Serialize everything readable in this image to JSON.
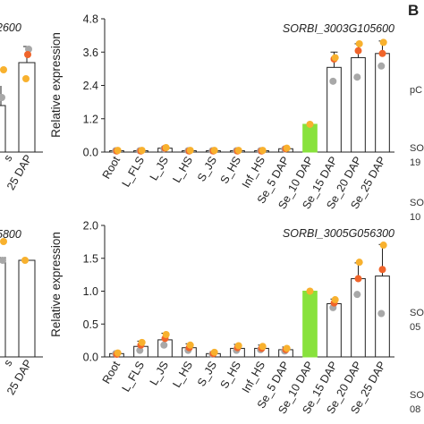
{
  "panel_letter": "B",
  "left_fragments": {
    "top_title": "2600",
    "top_labels": [
      "s",
      "25 DAP"
    ],
    "bottom_title": "5800",
    "bottom_labels": [
      "s",
      "25 DAP"
    ]
  },
  "right_fragments": [
    "pC",
    "SO",
    "19",
    "SO",
    "10",
    "SO",
    "05",
    "SO",
    "08"
  ],
  "colors": {
    "bar_outline": "#222222",
    "highlight_bar": "#88e23c",
    "dot_orange": "#f0642a",
    "dot_yellow": "#f8b12e",
    "dot_gray": "#a8a8a8",
    "error_bar": "#222222"
  },
  "chart_data": [
    {
      "type": "bar",
      "title": "SORBI_3003G105600",
      "ylabel": "Relative expression",
      "xlabel": "",
      "ylim": [
        0,
        4.8
      ],
      "yticks": [
        "0.0",
        "1.2",
        "2.4",
        "3.6",
        "4.8"
      ],
      "categories": [
        "Root",
        "L_FLS",
        "L_JS",
        "L_HS",
        "S_JS",
        "S_HS",
        "Inf_HS",
        "Se_5 DAP",
        "Se_10 DAP",
        "Se_15 DAP",
        "Se_20 DAP",
        "Se_25 DAP"
      ],
      "values": [
        0.05,
        0.05,
        0.14,
        0.05,
        0.05,
        0.05,
        0.05,
        0.12,
        1.0,
        3.05,
        3.4,
        3.55
      ],
      "errors": [
        0.02,
        0.02,
        0.06,
        0.02,
        0.02,
        0.02,
        0.02,
        0.05,
        0.0,
        0.55,
        0.5,
        0.45
      ],
      "highlight_index": 8,
      "replicates": [
        [
          0.05,
          0.04,
          0.06
        ],
        [
          0.05,
          0.04,
          0.06
        ],
        [
          0.12,
          0.14,
          0.16
        ],
        [
          0.05,
          0.04,
          0.06
        ],
        [
          0.05,
          0.04,
          0.06
        ],
        [
          0.05,
          0.04,
          0.06
        ],
        [
          0.05,
          0.04,
          0.06
        ],
        [
          0.11,
          0.12,
          0.14
        ],
        [
          1.0
        ],
        [
          2.55,
          3.35,
          3.4
        ],
        [
          2.7,
          3.65,
          3.9
        ],
        [
          3.1,
          3.55,
          3.95
        ]
      ]
    },
    {
      "type": "bar",
      "title": "SORBI_3005G056300",
      "ylabel": "Relative expression",
      "xlabel": "",
      "ylim": [
        0,
        2.0
      ],
      "yticks": [
        "0.0",
        "0.5",
        "1.0",
        "1.5",
        "2.0"
      ],
      "categories": [
        "Root",
        "L_FLS",
        "L_JS",
        "L_HS",
        "S_JS",
        "S_HS",
        "Inf_HS",
        "Se_5 DAP",
        "Se_10 DAP",
        "Se_15 DAP",
        "Se_20 DAP",
        "Se_25 DAP"
      ],
      "values": [
        0.05,
        0.16,
        0.26,
        0.14,
        0.05,
        0.13,
        0.13,
        0.11,
        1.0,
        0.81,
        1.19,
        1.23
      ],
      "errors": [
        0.02,
        0.08,
        0.1,
        0.06,
        0.03,
        0.06,
        0.05,
        0.04,
        0.0,
        0.07,
        0.24,
        0.48
      ],
      "highlight_index": 8,
      "replicates": [
        [
          0.05,
          0.04,
          0.06
        ],
        [
          0.1,
          0.18,
          0.22
        ],
        [
          0.18,
          0.28,
          0.34
        ],
        [
          0.1,
          0.14,
          0.18
        ],
        [
          0.04,
          0.05,
          0.07
        ],
        [
          0.1,
          0.14,
          0.17
        ],
        [
          0.11,
          0.13,
          0.16
        ],
        [
          0.09,
          0.11,
          0.13
        ],
        [
          1.0
        ],
        [
          0.75,
          0.82,
          0.87
        ],
        [
          0.95,
          1.19,
          1.44
        ],
        [
          0.66,
          1.33,
          1.7
        ]
      ]
    }
  ]
}
